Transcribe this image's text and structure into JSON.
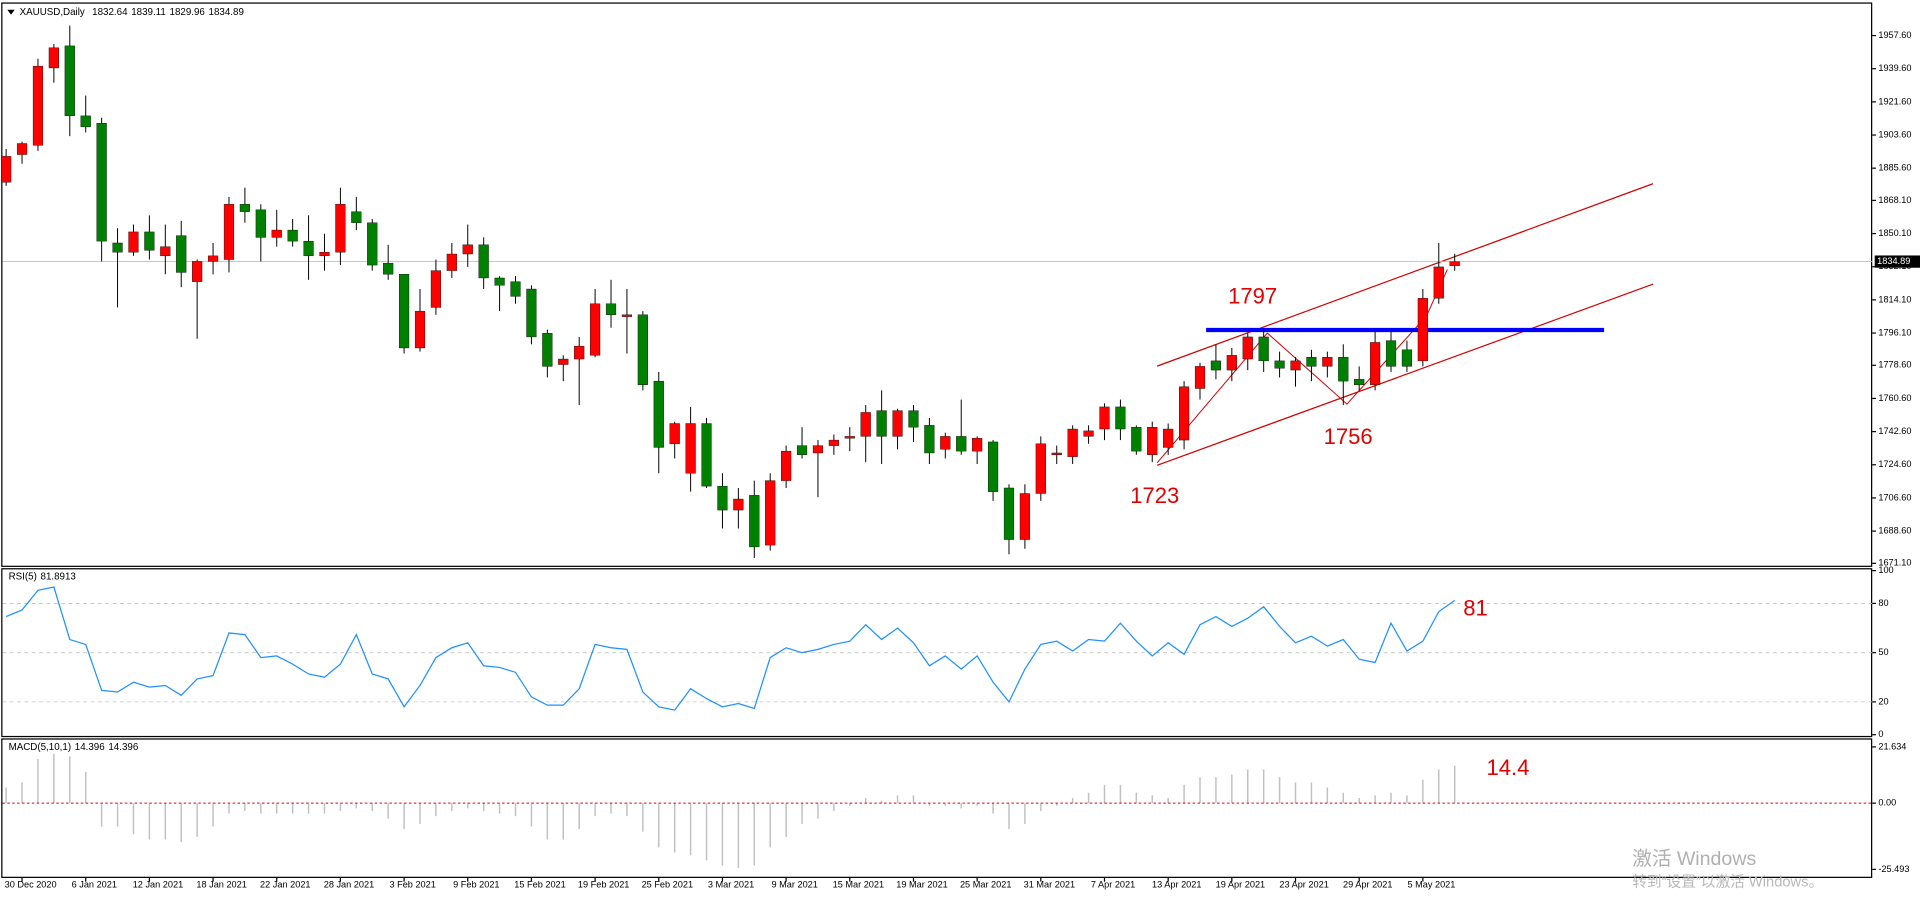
{
  "chart_data": [
    {
      "type": "candlestick",
      "title": "XAUUSD,Daily",
      "categories": [
        null,
        "30 Dec 2020",
        null,
        null,
        null,
        "6 Jan 2021",
        null,
        null,
        null,
        "12 Jan 2021",
        null,
        null,
        null,
        "18 Jan 2021",
        null,
        null,
        null,
        "22 Jan 2021",
        null,
        null,
        null,
        "28 Jan 2021",
        null,
        null,
        null,
        "3 Feb 2021",
        null,
        null,
        null,
        "9 Feb 2021",
        null,
        null,
        null,
        "15 Feb 2021",
        null,
        null,
        null,
        "19 Feb 2021",
        null,
        null,
        null,
        "25 Feb 2021",
        null,
        null,
        null,
        "3 Mar 2021",
        null,
        null,
        null,
        "9 Mar 2021",
        null,
        null,
        null,
        "15 Mar 2021",
        null,
        null,
        null,
        "19 Mar 2021",
        null,
        null,
        null,
        "25 Mar 2021",
        null,
        null,
        null,
        "31 Mar 2021",
        null,
        null,
        null,
        "7 Apr 2021",
        null,
        null,
        null,
        "13 Apr 2021",
        null,
        null,
        null,
        "19 Apr 2021",
        null,
        null,
        null,
        "23 Apr 2021",
        null,
        null,
        null,
        "29 Apr 2021",
        null,
        null,
        null,
        "5 May 2021",
        null,
        null
      ],
      "open": [
        1878,
        1893,
        1898,
        1940,
        1952,
        1914,
        1910,
        1845,
        1840,
        1851,
        1838,
        1849,
        1824,
        1835,
        1836,
        1866,
        1863,
        1848,
        1852,
        1846,
        1838,
        1840,
        1862,
        1856,
        1834,
        1828,
        1788,
        1810,
        1830,
        1839,
        1844,
        1826,
        1824,
        1820,
        1796,
        1779,
        1782,
        1784,
        1812,
        1805,
        1806,
        1770,
        1736,
        1720,
        1747,
        1713,
        1700,
        1708,
        1681,
        1716,
        1735,
        1731,
        1735,
        1739,
        1740,
        1754,
        1740,
        1754,
        1746,
        1733,
        1740,
        1732,
        1737,
        1712,
        1684,
        1709,
        1730,
        1729,
        1740,
        1744,
        1756,
        1745,
        1730,
        1734,
        1738,
        1766,
        1781,
        1776,
        1782,
        1794,
        1781,
        1776,
        1783,
        1778,
        1783,
        1771,
        1768,
        1792,
        1787,
        1781,
        1815,
        1832.64
      ],
      "high": [
        1896,
        1900,
        1945,
        1953,
        1963,
        1925,
        1913,
        1853,
        1855,
        1860,
        1855,
        1857,
        1836,
        1845,
        1870,
        1875,
        1866,
        1863,
        1858,
        1860,
        1850,
        1875,
        1870,
        1858,
        1844,
        1828,
        1820,
        1836,
        1845,
        1855,
        1848,
        1827,
        1827,
        1822,
        1798,
        1784,
        1794,
        1820,
        1825,
        1820,
        1808,
        1775,
        1748,
        1756,
        1750,
        1720,
        1712,
        1716,
        1720,
        1735,
        1745,
        1738,
        1741,
        1745,
        1757,
        1765,
        1755,
        1757,
        1750,
        1742,
        1760,
        1740,
        1738,
        1714,
        1714,
        1740,
        1735,
        1746,
        1746,
        1758,
        1760,
        1746,
        1748,
        1747,
        1770,
        1780,
        1790,
        1788,
        1796,
        1798,
        1786,
        1783,
        1787,
        1786,
        1790,
        1778,
        1797,
        1797,
        1792,
        1820,
        1845,
        1839.11
      ],
      "low": [
        1876,
        1888,
        1895,
        1932,
        1903,
        1905,
        1835,
        1810,
        1838,
        1836,
        1828,
        1821,
        1793,
        1828,
        1829,
        1856,
        1835,
        1843,
        1843,
        1825,
        1830,
        1833,
        1852,
        1830,
        1825,
        1785,
        1786,
        1806,
        1826,
        1832,
        1820,
        1808,
        1812,
        1790,
        1772,
        1770,
        1757,
        1783,
        1799,
        1785,
        1765,
        1720,
        1728,
        1710,
        1712,
        1690,
        1690,
        1674,
        1678,
        1712,
        1728,
        1707,
        1730,
        1732,
        1726,
        1725,
        1733,
        1737,
        1725,
        1728,
        1730,
        1725,
        1705,
        1676,
        1679,
        1705,
        1725,
        1725,
        1736,
        1738,
        1738,
        1730,
        1726,
        1730,
        1733,
        1760,
        1771,
        1770,
        1776,
        1775,
        1772,
        1767,
        1770,
        1772,
        1757,
        1765,
        1765,
        1775,
        1775,
        1778,
        1812,
        1829.96
      ],
      "close": [
        1892,
        1899,
        1941,
        1951,
        1914,
        1908,
        1846,
        1840,
        1851,
        1841,
        1843,
        1829,
        1835,
        1838,
        1866,
        1862,
        1848,
        1852,
        1846,
        1838,
        1840,
        1866,
        1856,
        1833,
        1828,
        1788,
        1808,
        1830,
        1839,
        1844,
        1826,
        1822,
        1816,
        1794,
        1778,
        1782,
        1789,
        1812,
        1806,
        1806,
        1768,
        1734,
        1747,
        1747,
        1713,
        1700,
        1706,
        1680,
        1716,
        1732,
        1730,
        1735,
        1738,
        1740,
        1753,
        1740,
        1754,
        1745,
        1731,
        1740,
        1732,
        1739,
        1710,
        1684,
        1709,
        1736,
        1731,
        1744,
        1743,
        1756,
        1744,
        1732,
        1745,
        1744,
        1767,
        1778,
        1776,
        1784,
        1794,
        1781,
        1777,
        1781,
        1778,
        1783,
        1770,
        1768,
        1791,
        1778,
        1778,
        1815,
        1832,
        1834.89
      ],
      "up_color": "#ff0000",
      "down_color": "#008000",
      "ylim": [
        1669.8,
        1974.9
      ],
      "yticks": [
        {
          "value": 1957.6,
          "label": "1957.60"
        },
        {
          "value": 1939.6,
          "label": "1939.60"
        },
        {
          "value": 1921.6,
          "label": "1921.60"
        },
        {
          "value": 1903.6,
          "label": "1903.60"
        },
        {
          "value": 1885.6,
          "label": "1885.60"
        },
        {
          "value": 1868.1,
          "label": "1868.10"
        },
        {
          "value": 1850.1,
          "label": "1850.10"
        },
        {
          "value": 1832.1,
          "label": "1832.10"
        },
        {
          "value": 1814.1,
          "label": "1814.10"
        },
        {
          "value": 1796.1,
          "label": "1796.10"
        },
        {
          "value": 1778.6,
          "label": "1778.60"
        },
        {
          "value": 1760.6,
          "label": "1760.60"
        },
        {
          "value": 1742.6,
          "label": "1742.60"
        },
        {
          "value": 1724.6,
          "label": "1724.60"
        },
        {
          "value": 1706.6,
          "label": "1706.60"
        },
        {
          "value": 1688.6,
          "label": "1688.60"
        },
        {
          "value": 1671.1,
          "label": "1671.10"
        }
      ],
      "annotations": [
        "1797",
        "1756",
        "1723"
      ]
    },
    {
      "type": "line",
      "title": "RSI(5)",
      "series": [
        {
          "name": "RSI",
          "color": "#1e90ff",
          "values": [
            72,
            76,
            88,
            90,
            58,
            55,
            27,
            26,
            32,
            29,
            30,
            24,
            34,
            36,
            62,
            61,
            47,
            48,
            43,
            37,
            35,
            43,
            61,
            37,
            34,
            17,
            30,
            47,
            53,
            56,
            42,
            41,
            38,
            23,
            18,
            18,
            28,
            55,
            53,
            52,
            26,
            17,
            15,
            28,
            22,
            17,
            19,
            16,
            47,
            53,
            50,
            52,
            55,
            57,
            67,
            58,
            65,
            56,
            42,
            48,
            40,
            48,
            32,
            20,
            40,
            55,
            57,
            51,
            58,
            57,
            68,
            57,
            48,
            56,
            49,
            67,
            72,
            66,
            71,
            78,
            66,
            56,
            60,
            54,
            58,
            46,
            44,
            68,
            51,
            57,
            75,
            81.8913
          ]
        }
      ],
      "ylim": [
        0,
        100
      ],
      "yticks": [
        100,
        80,
        50,
        20,
        0
      ],
      "levels": [
        80,
        50,
        20
      ],
      "annotations": [
        "81"
      ]
    },
    {
      "type": "histogram",
      "title": "MACD(5,10,1)",
      "series": [
        {
          "name": "MACD",
          "color": "#c0c0c0",
          "values": [
            6,
            8,
            17,
            19,
            18,
            12,
            -9,
            -9,
            -12,
            -14,
            -14,
            -15,
            -13,
            -9,
            -4,
            -3,
            -4,
            -4,
            -4,
            -4,
            -4,
            -3,
            -2,
            -3,
            -6,
            -10,
            -8,
            -5,
            -3,
            -2,
            -3,
            -4,
            -5,
            -9,
            -14,
            -14,
            -10,
            -5,
            -4,
            -5,
            -11,
            -17,
            -19,
            -20,
            -22,
            -24,
            -25,
            -24,
            -17,
            -13,
            -8,
            -6,
            -3,
            -1,
            2,
            1,
            3,
            3,
            -1,
            -1,
            -2,
            -1,
            -4,
            -10,
            -8,
            -3,
            -1,
            2,
            4,
            7,
            7,
            4,
            3,
            2,
            7,
            10,
            10,
            11,
            13,
            13,
            10,
            8,
            8,
            6,
            4,
            2,
            3,
            4,
            3,
            9,
            13,
            14.396
          ]
        }
      ],
      "ylim": [
        -25.493,
        21.634
      ],
      "yticks": [
        21.634,
        {
          "value": 0,
          "label": "0.00"
        },
        -25.493
      ],
      "zero_line_color": "#e00000",
      "annotations": [
        "14.4"
      ]
    }
  ],
  "watermark": [
    "激活 Windows",
    "转到“设置”以激活 Windows。"
  ]
}
